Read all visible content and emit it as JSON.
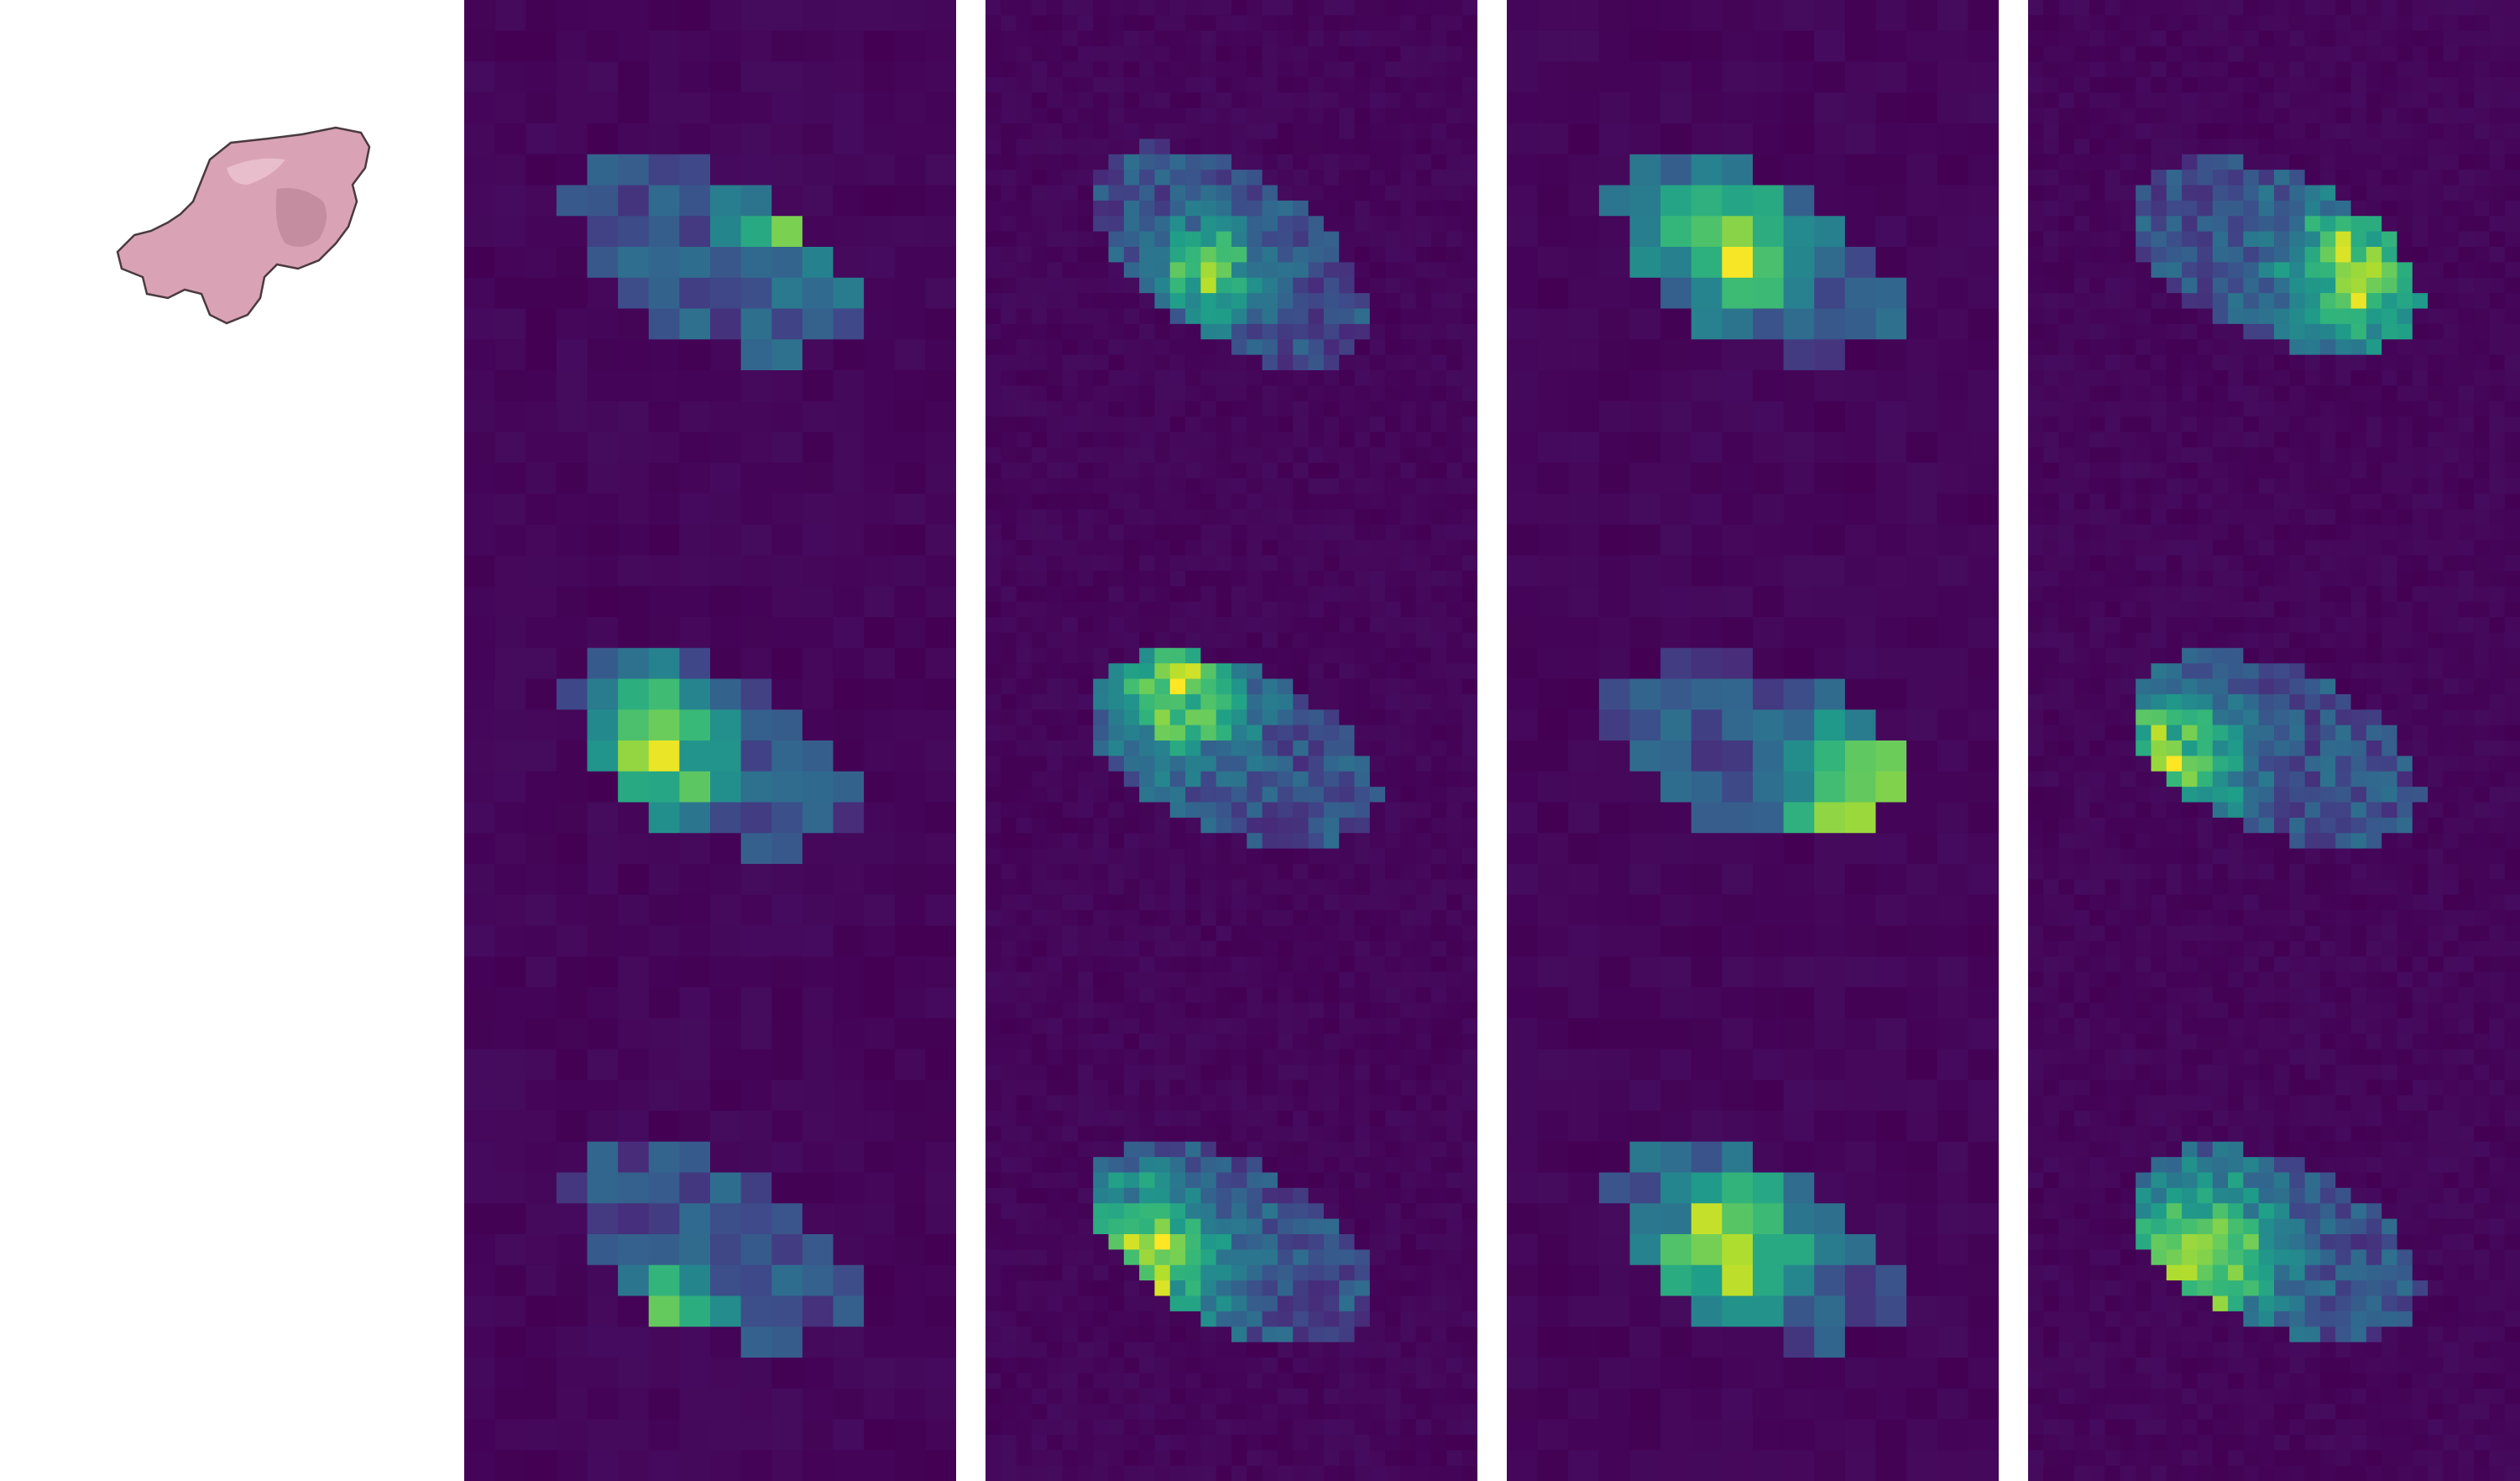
{
  "figure": {
    "description_free": true,
    "colormap": "viridis",
    "colors": {
      "background": "#ffffff",
      "heatmap_low": "#440154",
      "heatmap_mid": "#21918c",
      "heatmap_high": "#fde725",
      "object_fill": "#d9a3b5",
      "object_outline": "#4a3a3e"
    },
    "query": {
      "icon": "query-object-thumbnail"
    },
    "columns": [
      {
        "id": "col-1",
        "tiles": [
          {
            "grid": 16,
            "seed": 11,
            "peak": [
              0.72,
              0.4
            ],
            "spread": 0.18,
            "tilt": -0.5
          },
          {
            "grid": 16,
            "seed": 23,
            "peak": [
              0.4,
              0.52
            ],
            "spread": 0.17,
            "tilt": -0.5
          },
          {
            "grid": 16,
            "seed": 37,
            "peak": [
              0.4,
              0.68
            ],
            "spread": 0.13,
            "tilt": -0.5
          }
        ]
      },
      {
        "id": "col-2",
        "tiles": [
          {
            "grid": 32,
            "seed": 41,
            "peak": [
              0.45,
              0.55
            ],
            "spread": 0.11,
            "tilt": -0.6
          },
          {
            "grid": 32,
            "seed": 53,
            "peak": [
              0.4,
              0.4
            ],
            "spread": 0.16,
            "tilt": -0.4
          },
          {
            "grid": 32,
            "seed": 67,
            "peak": [
              0.32,
              0.55
            ],
            "spread": 0.18,
            "tilt": -0.5
          }
        ]
      },
      {
        "id": "col-3",
        "tiles": [
          {
            "grid": 16,
            "seed": 71,
            "peak": [
              0.45,
              0.5
            ],
            "spread": 0.17,
            "tilt": -0.5
          },
          {
            "grid": 16,
            "seed": 83,
            "peak": [
              0.72,
              0.62
            ],
            "spread": 0.19,
            "tilt": -0.3
          },
          {
            "grid": 16,
            "seed": 97,
            "peak": [
              0.45,
              0.52
            ],
            "spread": 0.17,
            "tilt": -0.5
          }
        ]
      },
      {
        "id": "col-4",
        "tiles": [
          {
            "grid": 32,
            "seed": 101,
            "peak": [
              0.68,
              0.55
            ],
            "spread": 0.18,
            "tilt": -0.4
          },
          {
            "grid": 32,
            "seed": 113,
            "peak": [
              0.28,
              0.55
            ],
            "spread": 0.17,
            "tilt": -0.4
          },
          {
            "grid": 32,
            "seed": 127,
            "peak": [
              0.35,
              0.55
            ],
            "spread": 0.19,
            "tilt": -0.4
          }
        ]
      }
    ]
  }
}
